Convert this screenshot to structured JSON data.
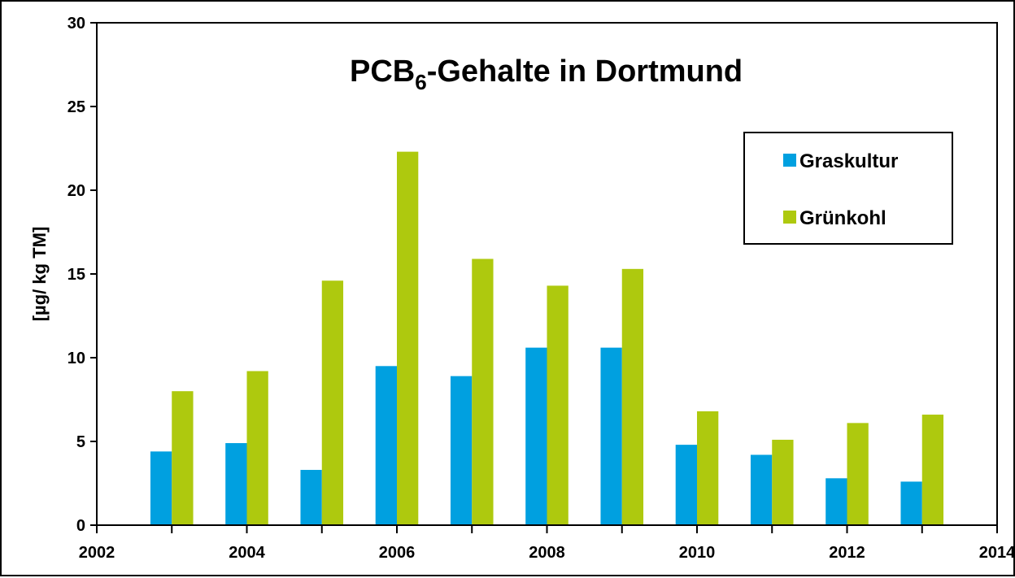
{
  "chart_data": {
    "type": "bar",
    "title_main": "PCB",
    "title_sub": "6",
    "title_rest": "-Gehalte in Dortmund",
    "ylabel": "[µg/ kg TM]",
    "xlabel": "",
    "ylim": [
      0,
      30
    ],
    "y_ticks": [
      0,
      5,
      10,
      15,
      20,
      25,
      30
    ],
    "xlim": [
      2002,
      2014
    ],
    "x_ticks": [
      2002,
      2004,
      2006,
      2008,
      2010,
      2012,
      2014
    ],
    "x_tick_labels": [
      "2002",
      "2004",
      "2006",
      "2008",
      "2010",
      "2012",
      "2014"
    ],
    "categories": [
      2003,
      2004,
      2005,
      2006,
      2007,
      2008,
      2009,
      2010,
      2011,
      2012,
      2013
    ],
    "series": [
      {
        "name": "Graskultur",
        "color": "#00a0e0",
        "values": [
          4.4,
          4.9,
          3.3,
          9.5,
          8.9,
          10.6,
          10.6,
          4.8,
          4.2,
          2.8,
          2.6
        ]
      },
      {
        "name": "Grünkohl",
        "color": "#aec90e",
        "values": [
          8.0,
          9.2,
          14.6,
          22.3,
          15.9,
          14.3,
          15.3,
          6.8,
          5.1,
          6.1,
          6.6
        ]
      }
    ],
    "legend_position": "top-right",
    "grid": false
  }
}
